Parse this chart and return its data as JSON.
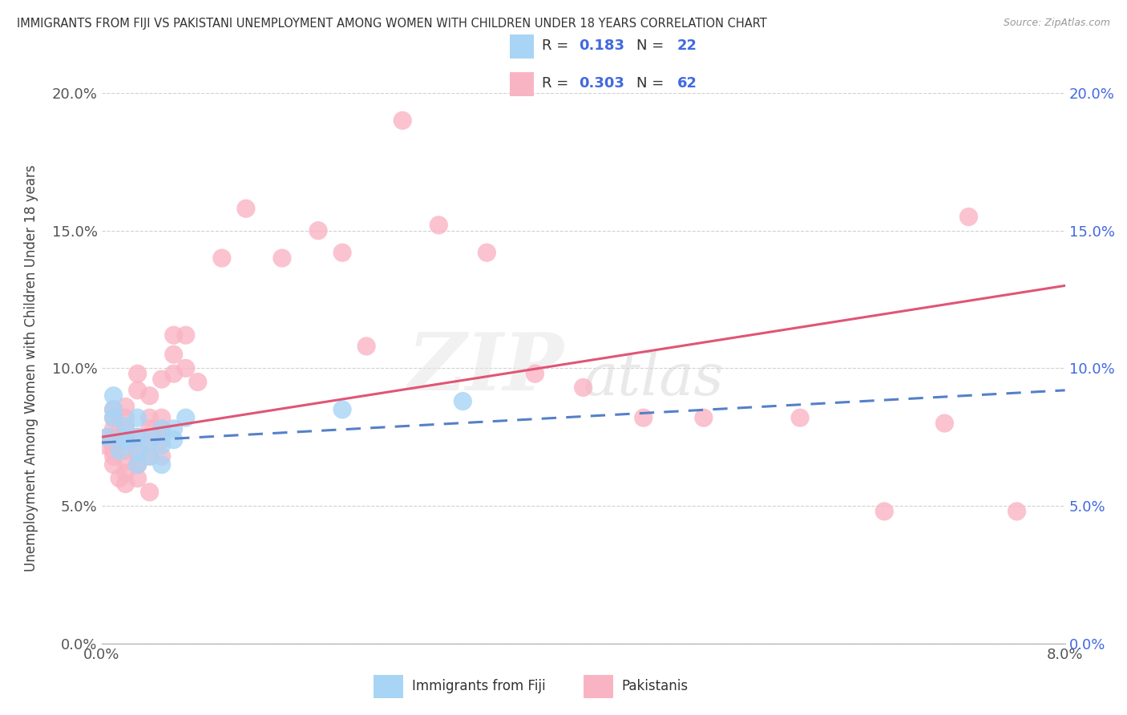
{
  "title": "IMMIGRANTS FROM FIJI VS PAKISTANI UNEMPLOYMENT AMONG WOMEN WITH CHILDREN UNDER 18 YEARS CORRELATION CHART",
  "source": "Source: ZipAtlas.com",
  "ylabel": "Unemployment Among Women with Children Under 18 years",
  "x_label_fiji": "Immigrants from Fiji",
  "x_label_pak": "Pakistanis",
  "fiji_R": 0.183,
  "fiji_N": 22,
  "pak_R": 0.303,
  "pak_N": 62,
  "fiji_color": "#A8D4F5",
  "pak_color": "#F9B4C4",
  "fiji_line_color": "#5580C8",
  "pak_line_color": "#E05575",
  "xlim": [
    0.0,
    0.08
  ],
  "ylim": [
    0.0,
    0.2
  ],
  "xticks_show": [
    0.0,
    0.08
  ],
  "yticks": [
    0.0,
    0.05,
    0.1,
    0.15,
    0.2
  ],
  "fiji_x": [
    0.0005,
    0.001,
    0.001,
    0.001,
    0.0015,
    0.002,
    0.002,
    0.002,
    0.003,
    0.003,
    0.003,
    0.003,
    0.004,
    0.004,
    0.005,
    0.005,
    0.005,
    0.006,
    0.006,
    0.007,
    0.02,
    0.03
  ],
  "fiji_y": [
    0.075,
    0.082,
    0.085,
    0.09,
    0.07,
    0.074,
    0.079,
    0.075,
    0.065,
    0.07,
    0.075,
    0.082,
    0.068,
    0.074,
    0.065,
    0.072,
    0.078,
    0.074,
    0.078,
    0.082,
    0.085,
    0.088
  ],
  "pak_x": [
    0.0003,
    0.0005,
    0.001,
    0.001,
    0.001,
    0.001,
    0.001,
    0.001,
    0.001,
    0.001,
    0.001,
    0.0015,
    0.002,
    0.002,
    0.002,
    0.002,
    0.002,
    0.002,
    0.002,
    0.002,
    0.003,
    0.003,
    0.003,
    0.003,
    0.003,
    0.003,
    0.003,
    0.004,
    0.004,
    0.004,
    0.004,
    0.004,
    0.004,
    0.005,
    0.005,
    0.005,
    0.005,
    0.005,
    0.006,
    0.006,
    0.006,
    0.007,
    0.007,
    0.008,
    0.01,
    0.012,
    0.015,
    0.018,
    0.02,
    0.022,
    0.025,
    0.028,
    0.032,
    0.036,
    0.04,
    0.045,
    0.05,
    0.058,
    0.065,
    0.07,
    0.072,
    0.076
  ],
  "pak_y": [
    0.072,
    0.075,
    0.065,
    0.068,
    0.072,
    0.075,
    0.078,
    0.082,
    0.085,
    0.07,
    0.073,
    0.06,
    0.062,
    0.066,
    0.07,
    0.074,
    0.078,
    0.082,
    0.086,
    0.058,
    0.06,
    0.065,
    0.07,
    0.075,
    0.092,
    0.098,
    0.065,
    0.068,
    0.073,
    0.078,
    0.082,
    0.09,
    0.055,
    0.068,
    0.074,
    0.078,
    0.082,
    0.096,
    0.098,
    0.105,
    0.112,
    0.1,
    0.112,
    0.095,
    0.14,
    0.158,
    0.14,
    0.15,
    0.142,
    0.108,
    0.19,
    0.152,
    0.142,
    0.098,
    0.093,
    0.082,
    0.082,
    0.082,
    0.048,
    0.08,
    0.155,
    0.048
  ],
  "pak_line_x0": 0.0,
  "pak_line_y0": 0.075,
  "pak_line_x1": 0.08,
  "pak_line_y1": 0.13,
  "fiji_line_x0": 0.0,
  "fiji_line_y0": 0.073,
  "fiji_line_x1": 0.08,
  "fiji_line_y1": 0.092
}
